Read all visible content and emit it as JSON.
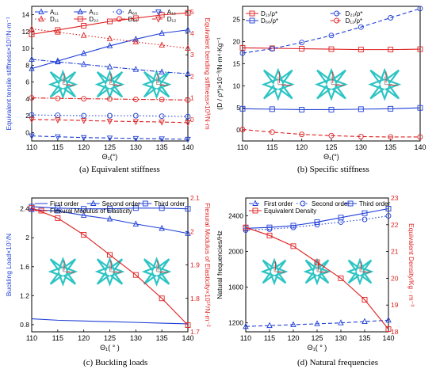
{
  "chart_data": [
    {
      "type": "line",
      "caption": "(a)  Equivalent stiffness",
      "xlabel": "Θ₁(°)",
      "ylabel_left": "Equivalent tensile stiffness×10⁷/N·m⁻¹",
      "ylabel_right": "Equivalent bending stiffness×10³/N·m",
      "xlim": [
        110,
        140
      ],
      "xticks": [
        110,
        115,
        120,
        125,
        130,
        135,
        140
      ],
      "ylim_left": [
        -1,
        15
      ],
      "yticks_left": [
        0,
        2,
        4,
        6,
        8,
        10,
        12,
        14
      ],
      "ylim_right": [
        -1,
        5.25
      ],
      "yticks_right": [
        0,
        1,
        2,
        3,
        4,
        5
      ],
      "legend_placement": "top",
      "series": [
        {
          "name": "A₁₁",
          "axis": "left",
          "color": "#1f3fd6",
          "dash": "dashdot",
          "marker": "tri-up",
          "x": [
            110,
            115,
            120,
            125,
            130,
            135,
            140
          ],
          "values": [
            8.7,
            8.4,
            8.1,
            7.8,
            7.5,
            7.2,
            7.0
          ]
        },
        {
          "name": "A₂₂",
          "axis": "left",
          "color": "#1f3fd6",
          "dash": "solid",
          "marker": "tri-up",
          "x": [
            110,
            115,
            120,
            125,
            130,
            135,
            140
          ],
          "values": [
            7.6,
            8.5,
            9.4,
            10.3,
            11.1,
            11.8,
            12.2
          ]
        },
        {
          "name": "A₆₆",
          "axis": "left",
          "color": "#1f3fd6",
          "dash": "dot",
          "marker": "circle",
          "x": [
            110,
            115,
            120,
            125,
            130,
            135,
            140
          ],
          "values": [
            2.1,
            2.05,
            2.0,
            2.0,
            2.0,
            1.95,
            1.9
          ]
        },
        {
          "name": "A₁₂",
          "axis": "left",
          "color": "#1f3fd6",
          "dash": "dash",
          "marker": "tri-down",
          "x": [
            110,
            115,
            120,
            125,
            130,
            135,
            140
          ],
          "values": [
            -0.4,
            -0.5,
            -0.6,
            -0.65,
            -0.7,
            -0.75,
            -0.8
          ]
        },
        {
          "name": "D₁₁",
          "axis": "right",
          "color": "#e02020",
          "dash": "dot",
          "marker": "tri-up",
          "x": [
            110,
            115,
            120,
            125,
            130,
            135,
            140
          ],
          "values": [
            4.2,
            4.05,
            3.9,
            3.75,
            3.6,
            3.45,
            3.3
          ]
        },
        {
          "name": "D₂₂",
          "axis": "right",
          "color": "#e02020",
          "dash": "solid",
          "marker": "square",
          "x": [
            110,
            115,
            120,
            125,
            130,
            135,
            140
          ],
          "values": [
            3.95,
            4.15,
            4.35,
            4.55,
            4.7,
            4.85,
            4.95
          ]
        },
        {
          "name": "D₆₆",
          "axis": "right",
          "color": "#e02020",
          "dash": "dashdot",
          "marker": "circle",
          "x": [
            110,
            115,
            120,
            125,
            130,
            135,
            140
          ],
          "values": [
            1.0,
            0.98,
            0.96,
            0.95,
            0.93,
            0.92,
            0.9
          ]
        },
        {
          "name": "D₁₂",
          "axis": "right",
          "color": "#e02020",
          "dash": "dash",
          "marker": "tri-down",
          "x": [
            110,
            115,
            120,
            125,
            130,
            135,
            140
          ],
          "values": [
            0.0,
            -0.02,
            -0.05,
            -0.08,
            -0.1,
            -0.12,
            -0.15
          ]
        }
      ]
    },
    {
      "type": "line",
      "caption": "(b)  Specific stiffness",
      "xlabel": "Θ₁(°)",
      "ylabel_left": "(D / ρ*)×10⁻³/N·m⁴·Kg⁻¹",
      "xlim": [
        110,
        140
      ],
      "xticks": [
        110,
        115,
        120,
        125,
        130,
        135,
        140
      ],
      "ylim_left": [
        -2.5,
        28
      ],
      "yticks_left": [
        0,
        5,
        10,
        15,
        20,
        25
      ],
      "legend_placement": "top-left",
      "series": [
        {
          "name": "D₁₁/ρ*",
          "color": "#e02020",
          "dash": "solid",
          "marker": "square",
          "x": [
            110,
            115,
            120,
            125,
            130,
            135,
            140
          ],
          "values": [
            18.6,
            18.5,
            18.4,
            18.3,
            18.2,
            18.2,
            18.3
          ]
        },
        {
          "name": "D₂₂/ρ*",
          "color": "#1f3fd6",
          "dash": "dash",
          "marker": "circle",
          "x": [
            110,
            115,
            120,
            125,
            130,
            135,
            140
          ],
          "values": [
            17.4,
            18.4,
            19.8,
            21.4,
            23.3,
            25.4,
            27.5
          ]
        },
        {
          "name": "D₆₆/ρ*",
          "color": "#1f3fd6",
          "dash": "solid",
          "marker": "square",
          "x": [
            110,
            115,
            120,
            125,
            130,
            135,
            140
          ],
          "values": [
            4.8,
            4.7,
            4.6,
            4.6,
            4.7,
            4.8,
            5.0
          ]
        },
        {
          "name": "D₁₂/ρ*",
          "color": "#e02020",
          "dash": "dash",
          "marker": "circle",
          "x": [
            110,
            115,
            120,
            125,
            130,
            135,
            140
          ],
          "values": [
            0.1,
            -0.5,
            -1.0,
            -1.3,
            -1.5,
            -1.6,
            -1.6
          ]
        }
      ]
    },
    {
      "type": "line",
      "caption": "(c)  Buckling loads",
      "xlabel": "Θ₁( ° )",
      "ylabel_left": "Buckling Load×10⁷/N",
      "ylabel_right": "Flexural Modulus of Elasticity×10¹⁰/N·m⁻²",
      "xlim": [
        110,
        140
      ],
      "xticks": [
        110,
        115,
        120,
        125,
        130,
        135,
        140
      ],
      "ylim_left": [
        0.7,
        2.55
      ],
      "yticks_left": [
        0.8,
        1.2,
        1.6,
        2.0,
        2.4
      ],
      "ylim_right": [
        1.7,
        2.1
      ],
      "yticks_right": [
        1.7,
        1.8,
        1.9,
        2.0,
        2.1
      ],
      "legend_placement": "top",
      "series": [
        {
          "name": "First order",
          "axis": "left",
          "color": "#1f3fd6",
          "dash": "solid",
          "marker": "none",
          "x": [
            110,
            115,
            120,
            125,
            130,
            135,
            140
          ],
          "values": [
            0.88,
            0.86,
            0.85,
            0.84,
            0.83,
            0.82,
            0.81
          ]
        },
        {
          "name": "Second order",
          "axis": "left",
          "color": "#1f3fd6",
          "dash": "solid",
          "marker": "tri-up",
          "x": [
            110,
            115,
            120,
            125,
            130,
            135,
            140
          ],
          "values": [
            2.39,
            2.37,
            2.31,
            2.26,
            2.19,
            2.13,
            2.06
          ]
        },
        {
          "name": "Third order",
          "axis": "left",
          "color": "#1f3fd6",
          "dash": "solid",
          "marker": "square",
          "x": [
            110,
            115,
            120,
            125,
            130,
            135,
            140
          ],
          "values": [
            2.43,
            2.41,
            2.4,
            2.4,
            2.41,
            2.41,
            2.4
          ]
        },
        {
          "name": "Flexural Modulus of Elasticity",
          "axis": "right",
          "color": "#e02020",
          "dash": "solid",
          "marker": "square",
          "x": [
            110,
            115,
            120,
            125,
            130,
            135,
            140
          ],
          "values": [
            2.07,
            2.04,
            1.99,
            1.93,
            1.87,
            1.8,
            1.72
          ]
        }
      ]
    },
    {
      "type": "line",
      "caption": "(d)  Natural frequencies",
      "xlabel": "Θ₁( ° )",
      "ylabel_left": "Natural frequencies/Hz",
      "ylabel_right": "Equivalent Density/Kg · m⁻³",
      "xlim": [
        110,
        140
      ],
      "xticks": [
        110,
        115,
        120,
        125,
        130,
        135,
        140
      ],
      "ylim_left": [
        1100,
        2600
      ],
      "yticks_left": [
        1200,
        1600,
        2000,
        2400
      ],
      "ylim_right": [
        18,
        23
      ],
      "yticks_right": [
        18,
        19,
        20,
        21,
        22,
        23
      ],
      "legend_placement": "top",
      "series": [
        {
          "name": "First order",
          "axis": "left",
          "color": "#1f3fd6",
          "dash": "dash",
          "marker": "tri-up",
          "x": [
            110,
            115,
            120,
            125,
            130,
            135,
            140
          ],
          "values": [
            1160,
            1170,
            1180,
            1190,
            1200,
            1215,
            1230
          ]
        },
        {
          "name": "Second order",
          "axis": "left",
          "color": "#1f3fd6",
          "dash": "dot",
          "marker": "circle",
          "x": [
            110,
            115,
            120,
            125,
            130,
            135,
            140
          ],
          "values": [
            2240,
            2250,
            2270,
            2300,
            2330,
            2360,
            2400
          ]
        },
        {
          "name": "Third order",
          "axis": "left",
          "color": "#1f3fd6",
          "dash": "solid",
          "marker": "square",
          "x": [
            110,
            115,
            120,
            125,
            130,
            135,
            140
          ],
          "values": [
            2260,
            2270,
            2290,
            2330,
            2380,
            2430,
            2480
          ]
        },
        {
          "name": "Equivalent Density",
          "axis": "right",
          "color": "#e02020",
          "dash": "solid",
          "marker": "square",
          "x": [
            110,
            115,
            120,
            125,
            130,
            135,
            140
          ],
          "values": [
            21.9,
            21.6,
            21.2,
            20.6,
            20.0,
            19.2,
            18.1
          ]
        }
      ]
    }
  ]
}
